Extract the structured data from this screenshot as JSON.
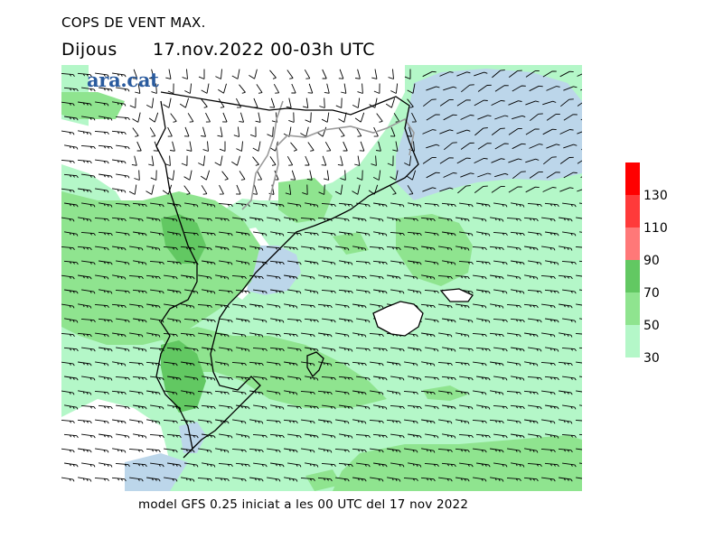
{
  "header": {
    "title": "COPS DE VENT MAX.",
    "day": "Dijous",
    "datetime": "17.nov.2022 00-03h UTC"
  },
  "logo": {
    "text": "ara.cat"
  },
  "footer": {
    "text": "model GFS 0.25 iniciat a les 00 UTC del 17 nov 2022"
  },
  "legend": {
    "bins": [
      {
        "from": 30,
        "to": 50,
        "color": "#b4f7c8"
      },
      {
        "from": 50,
        "to": 70,
        "color": "#8fe48f"
      },
      {
        "from": 70,
        "to": 90,
        "color": "#62c862"
      },
      {
        "from": 90,
        "to": 110,
        "color": "#ff7878"
      },
      {
        "from": 110,
        "to": 130,
        "color": "#ff3a3a"
      },
      {
        "from": 130,
        "to": 150,
        "color": "#ff0000"
      }
    ],
    "labels": [
      "30",
      "50",
      "70",
      "90",
      "110",
      "130"
    ]
  },
  "colors": {
    "low_wind": "#bcd6ea",
    "calm": "#ffffff",
    "coast": "#000000",
    "border": "#9a9a9a",
    "barb": "#000000"
  }
}
